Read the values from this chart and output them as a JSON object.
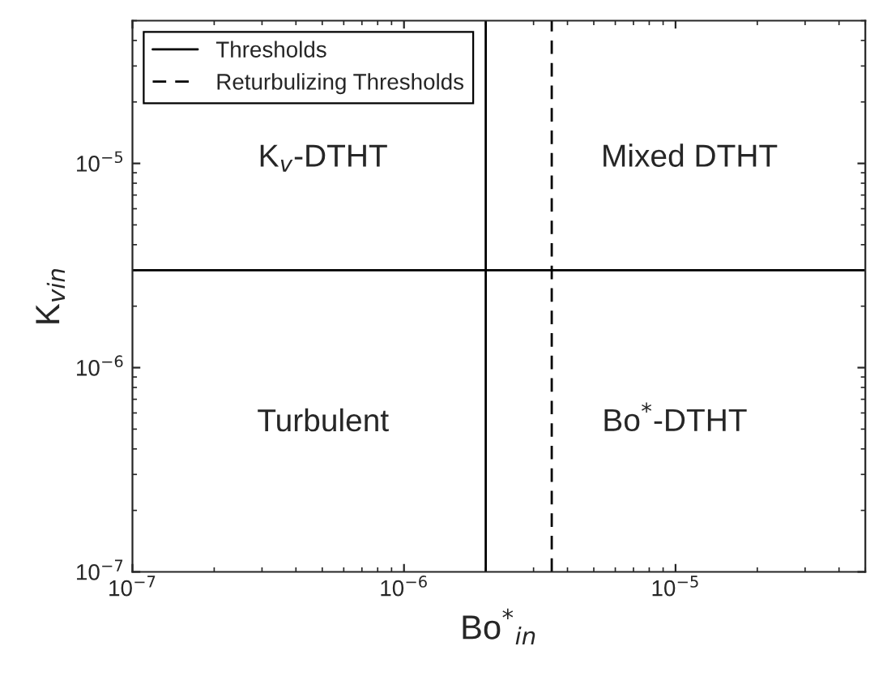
{
  "chart_data": {
    "type": "line",
    "xlabel": "Bo$^{*}$$_{in}$",
    "ylabel": "K$_{vin}$",
    "log": "xy",
    "grid": false,
    "legend": "top left",
    "xlim": [
      1e-07,
      5e-05
    ],
    "ylim": [
      1e-07,
      5e-05
    ],
    "xticks": [
      {
        "value": 1e-07,
        "label": "10$^{−7}$"
      },
      {
        "value": 1e-06,
        "label": "10$^{−6}$"
      },
      {
        "value": 1e-05,
        "label": "10$^{−5}$"
      }
    ],
    "yticks": [
      {
        "value": 1e-07,
        "label": "10$^{−7}$"
      },
      {
        "value": 1e-06,
        "label": "10$^{−6}$"
      },
      {
        "value": 1e-05,
        "label": "10$^{−5}$"
      }
    ],
    "series": [
      {
        "name": "Thresholds",
        "color": "#000000",
        "line_style": "solid",
        "x": [
          2e-06,
          2e-06,
          null,
          1e-07,
          5e-05
        ],
        "values": [
          1e-07,
          5e-05,
          null,
          3e-06,
          3e-06
        ]
      },
      {
        "name": "Returbulizing Thresholds",
        "color": "#000000",
        "line_style": "dashed",
        "x": [
          3.5e-06,
          3.5e-06
        ],
        "values": [
          1e-07,
          5e-05
        ]
      }
    ],
    "annotations": [
      "K$_{v}$-DTHT",
      "Mixed DTHT",
      "Turbulent",
      "Bo$^{*}$-DTHT"
    ]
  }
}
